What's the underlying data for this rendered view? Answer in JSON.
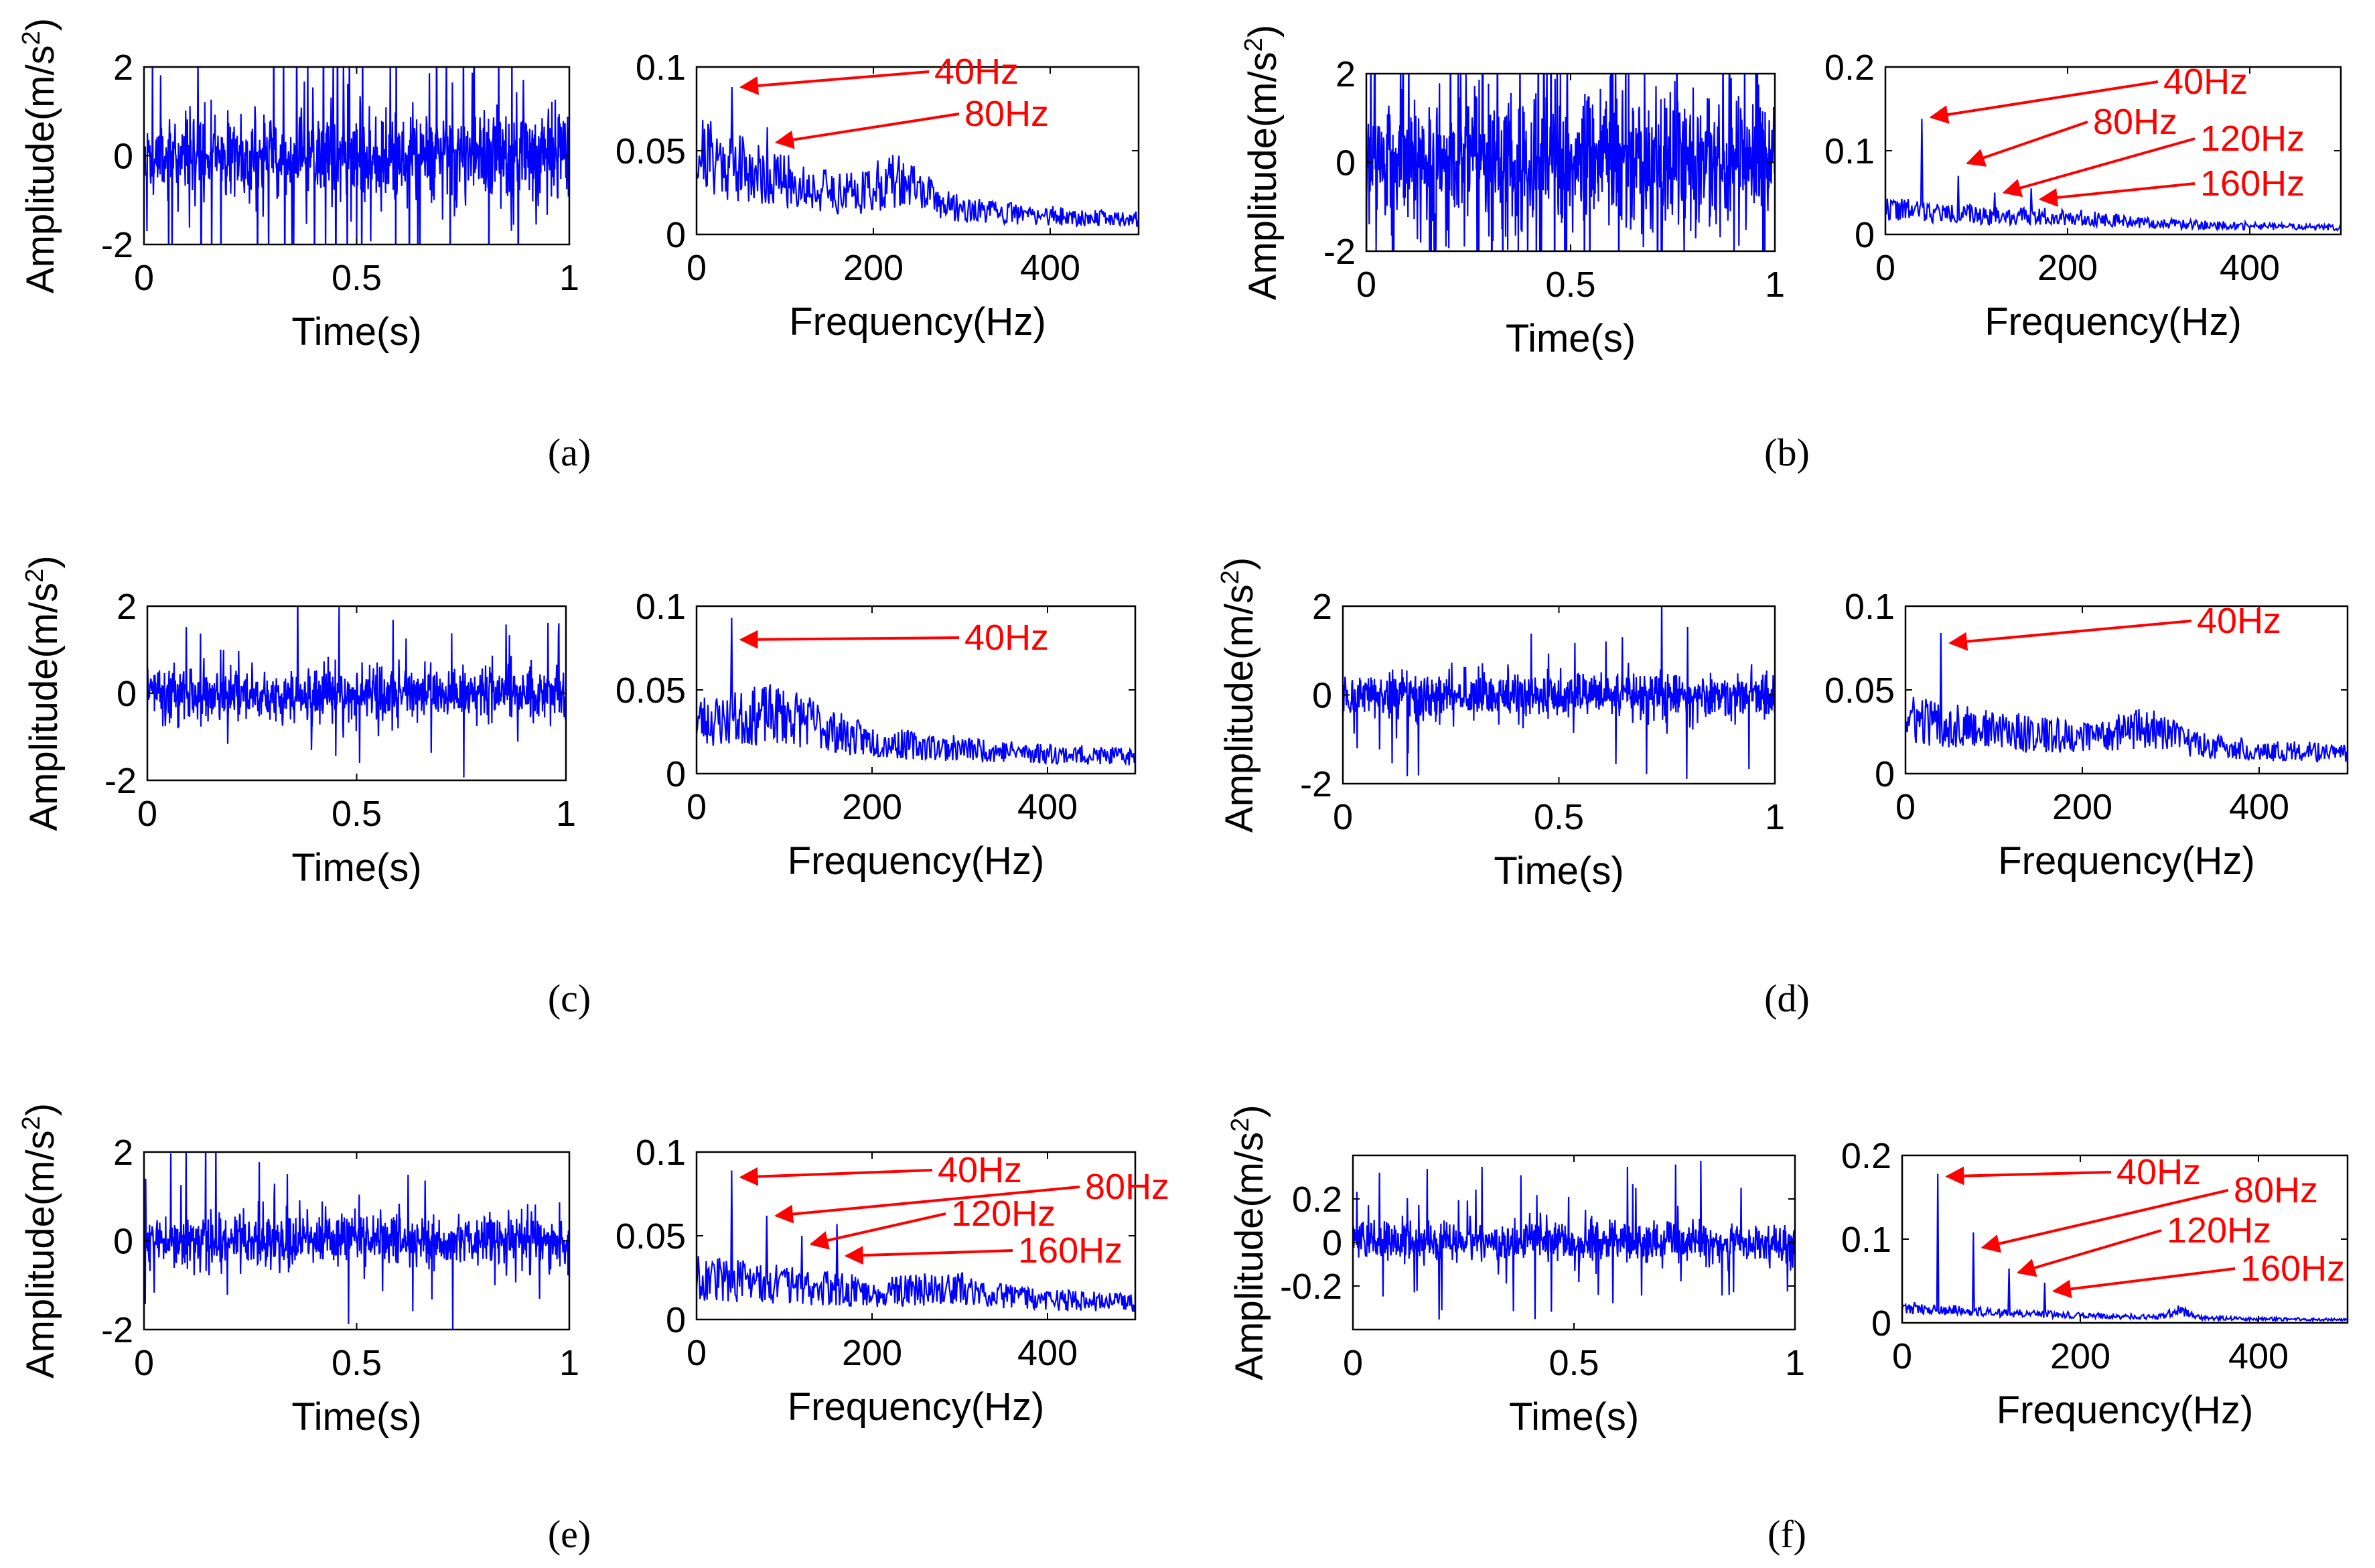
{
  "figure": {
    "panels": [
      "a",
      "b",
      "c",
      "d",
      "e",
      "f"
    ],
    "panel_labels": [
      "(a)",
      "(b)",
      "(c)",
      "(d)",
      "(e)",
      "(f)"
    ]
  },
  "colors": {
    "trace": "#0000ff",
    "annotation": "#ff0000",
    "axes": "#000000"
  },
  "chart_data": [
    {
      "panel": "a",
      "role": "time",
      "type": "line",
      "xlabel": "Time(s)",
      "ylabel": "Amplitude(m/s^2)",
      "xlim": [
        0,
        1
      ],
      "ylim": [
        -2,
        2
      ],
      "xticks": [
        0,
        0.5,
        1
      ],
      "xtick_labels": [
        "0",
        "0.5",
        "1"
      ],
      "yticks": [
        -2,
        0,
        2
      ],
      "ytick_labels": [
        "-2",
        "0",
        "2"
      ],
      "signal": {
        "samples": 1000,
        "noise_std": 0.85,
        "impulse_rate": 0.06,
        "impulse_amp": 2.6,
        "seed": 11
      }
    },
    {
      "panel": "a",
      "role": "spectrum",
      "type": "line",
      "xlabel": "Frequency(Hz)",
      "ylabel": "",
      "xlim": [
        0,
        500
      ],
      "ylim": [
        0,
        0.1
      ],
      "xticks": [
        0,
        200,
        400
      ],
      "xtick_labels": [
        "0",
        "200",
        "400"
      ],
      "yticks": [
        0,
        0.05,
        0.1
      ],
      "ytick_labels": [
        "0",
        "0.05",
        "0.1"
      ],
      "signal": {
        "samples": 500,
        "base": 0.042,
        "decay": 180,
        "floor": 0.006,
        "noise": 0.55,
        "hump": [
          230,
          40,
          0.012
        ],
        "seed": 21
      },
      "peaks": [
        {
          "freq": 40,
          "value": 0.088
        },
        {
          "freq": 80,
          "value": 0.064
        }
      ],
      "annotations": [
        {
          "label": "40Hz",
          "freq": 40,
          "value": 0.088
        },
        {
          "label": "80Hz",
          "freq": 80,
          "value": 0.055
        }
      ]
    },
    {
      "panel": "b",
      "role": "time",
      "type": "line",
      "xlabel": "Time(s)",
      "ylabel": "Amplitude(m/s^2)",
      "xlim": [
        0,
        1
      ],
      "ylim": [
        -2,
        2
      ],
      "xticks": [
        0,
        0.5,
        1
      ],
      "xtick_labels": [
        "0",
        "0.5",
        "1"
      ],
      "yticks": [
        -2,
        0,
        2
      ],
      "ytick_labels": [
        "-2",
        "0",
        "2"
      ],
      "signal": {
        "samples": 1000,
        "noise_std": 1.25,
        "impulse_rate": 0.08,
        "impulse_amp": 2.8,
        "seed": 12
      }
    },
    {
      "panel": "b",
      "role": "spectrum",
      "type": "line",
      "xlabel": "Frequency(Hz)",
      "ylabel": "",
      "xlim": [
        0,
        500
      ],
      "ylim": [
        0,
        0.2
      ],
      "xticks": [
        0,
        200,
        400
      ],
      "xtick_labels": [
        "0",
        "200",
        "400"
      ],
      "yticks": [
        0,
        0.1,
        0.2
      ],
      "ytick_labels": [
        "0",
        "0.1",
        "0.2"
      ],
      "signal": {
        "samples": 500,
        "base": 0.026,
        "decay": 260,
        "floor": 0.004,
        "noise": 0.5,
        "hump": [
          200,
          60,
          0.004
        ],
        "seed": 22
      },
      "peaks": [
        {
          "freq": 40,
          "value": 0.138
        },
        {
          "freq": 80,
          "value": 0.07
        },
        {
          "freq": 120,
          "value": 0.05
        },
        {
          "freq": 160,
          "value": 0.055
        }
      ],
      "annotations": [
        {
          "label": "40Hz",
          "freq": 40,
          "value": 0.14
        },
        {
          "label": "80Hz",
          "freq": 80,
          "value": 0.085
        },
        {
          "label": "120Hz",
          "freq": 120,
          "value": 0.05
        },
        {
          "label": "160Hz",
          "freq": 160,
          "value": 0.042
        }
      ]
    },
    {
      "panel": "c",
      "role": "time",
      "type": "line",
      "xlabel": "Time(s)",
      "ylabel": "Amplitude(m/s^2)",
      "xlim": [
        0,
        1
      ],
      "ylim": [
        -2,
        2
      ],
      "xticks": [
        0,
        0.5,
        1
      ],
      "xtick_labels": [
        "0",
        "0.5",
        "1"
      ],
      "yticks": [
        -2,
        0,
        2
      ],
      "ytick_labels": [
        "-2",
        "0",
        "2"
      ],
      "signal": {
        "samples": 1000,
        "noise_std": 0.5,
        "impulse_rate": 0.03,
        "impulse_amp": 1.5,
        "seed": 13
      }
    },
    {
      "panel": "c",
      "role": "spectrum",
      "type": "line",
      "xlabel": "Frequency(Hz)",
      "ylabel": "",
      "xlim": [
        0,
        500
      ],
      "ylim": [
        0,
        0.1
      ],
      "xticks": [
        0,
        200,
        400
      ],
      "xtick_labels": [
        "0",
        "200",
        "400"
      ],
      "yticks": [
        0,
        0.05,
        0.1
      ],
      "ytick_labels": [
        "0",
        "0.05",
        "0.1"
      ],
      "signal": {
        "samples": 500,
        "base": 0.026,
        "decay": 320,
        "floor": 0.004,
        "noise": 0.55,
        "hump": [
          100,
          60,
          0.01
        ],
        "seed": 23
      },
      "peaks": [
        {
          "freq": 40,
          "value": 0.093
        }
      ],
      "annotations": [
        {
          "label": "40Hz",
          "freq": 40,
          "value": 0.08
        }
      ]
    },
    {
      "panel": "d",
      "role": "time",
      "type": "line",
      "xlabel": "Time(s)",
      "ylabel": "Amplitude(m/s^2)",
      "xlim": [
        0,
        1
      ],
      "ylim": [
        -2,
        2
      ],
      "xticks": [
        0,
        0.5,
        1
      ],
      "xtick_labels": [
        "0",
        "0.5",
        "1"
      ],
      "yticks": [
        -2,
        0,
        2
      ],
      "ytick_labels": [
        "-2",
        "0",
        "2"
      ],
      "signal": {
        "samples": 1000,
        "noise_std": 0.45,
        "impulse_rate": 0.025,
        "impulse_amp": 1.4,
        "seed": 14
      }
    },
    {
      "panel": "d",
      "role": "spectrum",
      "type": "line",
      "xlabel": "Frequency(Hz)",
      "ylabel": "",
      "xlim": [
        0,
        500
      ],
      "ylim": [
        0,
        0.1
      ],
      "xticks": [
        0,
        200,
        400
      ],
      "xtick_labels": [
        "0",
        "200",
        "400"
      ],
      "yticks": [
        0,
        0.05,
        0.1
      ],
      "ytick_labels": [
        "0",
        "0.05",
        "0.1"
      ],
      "signal": {
        "samples": 500,
        "base": 0.026,
        "decay": 360,
        "floor": 0.005,
        "noise": 0.5,
        "hump": [
          270,
          50,
          0.008
        ],
        "seed": 24
      },
      "peaks": [
        {
          "freq": 40,
          "value": 0.084
        }
      ],
      "annotations": [
        {
          "label": "40Hz",
          "freq": 40,
          "value": 0.078
        }
      ]
    },
    {
      "panel": "e",
      "role": "time",
      "type": "line",
      "xlabel": "Time(s)",
      "ylabel": "Amplitude(m/s^2)",
      "xlim": [
        0,
        1
      ],
      "ylim": [
        -2,
        2
      ],
      "xticks": [
        0,
        0.5,
        1
      ],
      "xtick_labels": [
        "0",
        "0.5",
        "1"
      ],
      "yticks": [
        -2,
        0,
        2
      ],
      "ytick_labels": [
        "-2",
        "0",
        "2"
      ],
      "signal": {
        "samples": 1000,
        "noise_std": 0.5,
        "impulse_rate": 0.03,
        "impulse_amp": 1.6,
        "seed": 15
      }
    },
    {
      "panel": "e",
      "role": "spectrum",
      "type": "line",
      "xlabel": "Frequency(Hz)",
      "ylabel": "",
      "xlim": [
        0,
        500
      ],
      "ylim": [
        0,
        0.1
      ],
      "xticks": [
        0,
        200,
        400
      ],
      "xtick_labels": [
        "0",
        "200",
        "400"
      ],
      "yticks": [
        0,
        0.05,
        0.1
      ],
      "ytick_labels": [
        "0",
        "0.05",
        "0.1"
      ],
      "signal": {
        "samples": 500,
        "base": 0.02,
        "decay": 380,
        "floor": 0.004,
        "noise": 0.6,
        "hump": [
          300,
          60,
          0.004
        ],
        "seed": 25
      },
      "peaks": [
        {
          "freq": 40,
          "value": 0.089
        },
        {
          "freq": 80,
          "value": 0.062
        },
        {
          "freq": 120,
          "value": 0.05
        },
        {
          "freq": 160,
          "value": 0.057
        }
      ],
      "annotations": [
        {
          "label": "40Hz",
          "freq": 40,
          "value": 0.085
        },
        {
          "label": "80Hz",
          "freq": 80,
          "value": 0.062
        },
        {
          "label": "120Hz",
          "freq": 120,
          "value": 0.045
        },
        {
          "label": "160Hz",
          "freq": 160,
          "value": 0.038
        }
      ]
    },
    {
      "panel": "f",
      "role": "time",
      "type": "line",
      "xlabel": "Time(s)",
      "ylabel": "Amplitude(m/s^2)",
      "xlim": [
        0,
        1
      ],
      "ylim": [
        -0.4,
        0.4
      ],
      "xticks": [
        0,
        0.5,
        1
      ],
      "xtick_labels": [
        "0",
        "0.5",
        "1"
      ],
      "yticks": [
        -0.2,
        0,
        0.2
      ],
      "ytick_labels": [
        "-0.2",
        "0",
        "0.2"
      ],
      "signal": {
        "samples": 1000,
        "noise_std": 0.08,
        "impulse_rate": 0.04,
        "impulse_amp": 0.28,
        "seed": 16
      }
    },
    {
      "panel": "f",
      "role": "spectrum",
      "type": "line",
      "xlabel": "Frequency(Hz)",
      "ylabel": "",
      "xlim": [
        0,
        500
      ],
      "ylim": [
        0,
        0.2
      ],
      "xticks": [
        0,
        200,
        400
      ],
      "xtick_labels": [
        "0",
        "200",
        "400"
      ],
      "yticks": [
        0,
        0.1,
        0.2
      ],
      "ytick_labels": [
        "0",
        "0.1",
        "0.2"
      ],
      "signal": {
        "samples": 500,
        "base": 0.016,
        "decay": 220,
        "floor": 0.002,
        "noise": 0.45,
        "hump": [
          310,
          15,
          0.008
        ],
        "seed": 26
      },
      "peaks": [
        {
          "freq": 40,
          "value": 0.178
        },
        {
          "freq": 80,
          "value": 0.108
        },
        {
          "freq": 120,
          "value": 0.065
        },
        {
          "freq": 160,
          "value": 0.048
        }
      ],
      "annotations": [
        {
          "label": "40Hz",
          "freq": 40,
          "value": 0.175
        },
        {
          "label": "80Hz",
          "freq": 80,
          "value": 0.09
        },
        {
          "label": "120Hz",
          "freq": 120,
          "value": 0.06
        },
        {
          "label": "160Hz",
          "freq": 160,
          "value": 0.038
        }
      ]
    }
  ]
}
